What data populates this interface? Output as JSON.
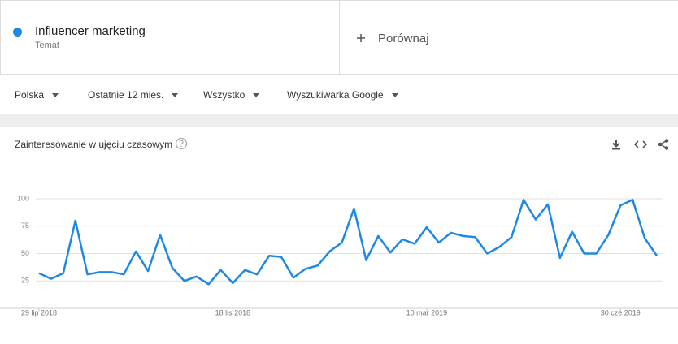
{
  "header": {
    "subtitle": "Temat",
    "compare": "Porównaj"
  },
  "filters": [
    "Polska",
    "Ostatnie 12 mies.",
    "Wszystko",
    "Wyszukiwarka Google"
  ],
  "chart_data": {
    "type": "line",
    "title": "Zainteresowanie w ujęciu czasowym",
    "categories": [
      "29 lip 2018",
      null,
      null,
      null,
      null,
      null,
      null,
      null,
      null,
      null,
      null,
      null,
      null,
      null,
      null,
      null,
      "18 lis 2018",
      null,
      null,
      null,
      null,
      null,
      null,
      null,
      null,
      null,
      null,
      null,
      null,
      null,
      null,
      null,
      "10 mar 2019",
      null,
      null,
      null,
      null,
      null,
      null,
      null,
      null,
      null,
      null,
      null,
      null,
      null,
      null,
      null,
      "30 cze 2019",
      null,
      null,
      null
    ],
    "series": [
      {
        "name": "Influencer marketing",
        "color": "#1e88e5",
        "values": [
          32,
          27,
          32,
          80,
          31,
          33,
          33,
          31,
          52,
          34,
          67,
          37,
          25,
          29,
          22,
          35,
          23,
          35,
          31,
          48,
          47,
          28,
          36,
          39,
          52,
          60,
          91,
          44,
          66,
          51,
          63,
          59,
          74,
          60,
          69,
          66,
          65,
          50,
          56,
          65,
          99,
          81,
          95,
          46,
          70,
          50,
          50,
          67,
          94,
          99,
          64,
          48
        ]
      }
    ],
    "ylim": [
      0,
      100
    ],
    "yticks": [
      25,
      50,
      75,
      100
    ],
    "grid": true
  }
}
